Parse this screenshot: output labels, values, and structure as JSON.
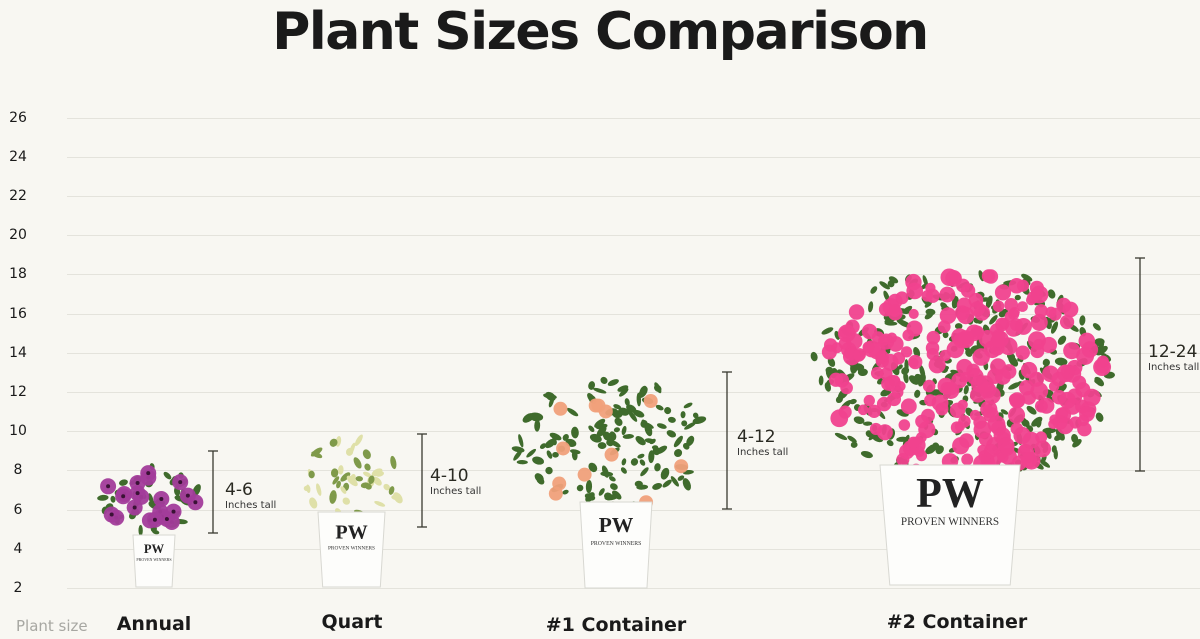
{
  "title": "Plant Sizes Comparison",
  "chart_data": {
    "type": "range",
    "title": "Plant Sizes Comparison",
    "xlabel": "Plant size",
    "ylabel": "",
    "ylim": [
      2,
      26
    ],
    "yticks": [
      26,
      24,
      22,
      20,
      18,
      16,
      14,
      12,
      10,
      8,
      6,
      4,
      2
    ],
    "grid": true,
    "categories": [
      "Annual",
      "Quart",
      "#1 Container",
      "#2 Container"
    ],
    "ranges": [
      {
        "label": "4-6",
        "unit": "Inches tall",
        "min": 4,
        "max": 6
      },
      {
        "label": "4-10",
        "unit": "Inches tall",
        "min": 4,
        "max": 10
      },
      {
        "label": "4-12",
        "unit": "Inches tall",
        "min": 4,
        "max": 12
      },
      {
        "label": "12-24",
        "unit": "Inches tall",
        "min": 12,
        "max": 24
      }
    ],
    "plant_colors": [
      "#a23c9a",
      "#c9d08a",
      "#f0a07a",
      "#f0428e"
    ],
    "pot_brand": "PROVEN WINNERS"
  }
}
